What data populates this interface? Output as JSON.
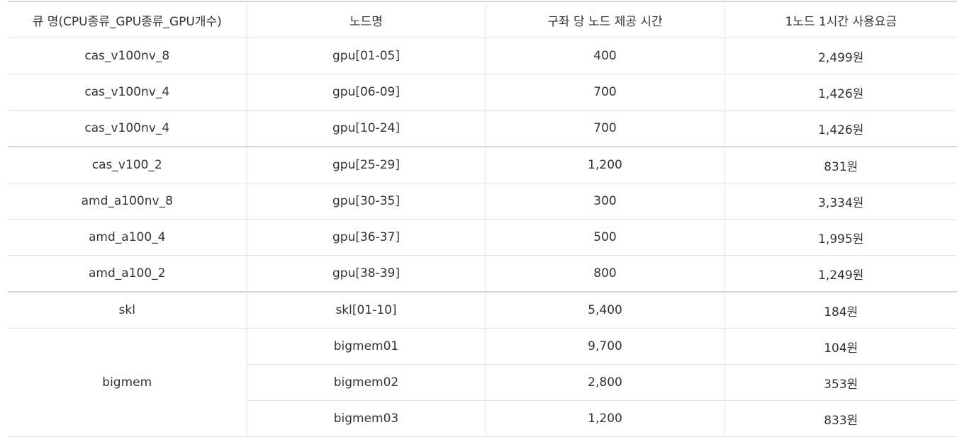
{
  "table": {
    "headers": [
      "큐 명(CPU종류_GPU종류_GPU개수)",
      "노드명",
      "구좌 당 노드 제공 시간",
      "1노드 1시간 사용요금"
    ],
    "rows": [
      {
        "queue": "cas_v100nv_8",
        "node": "gpu[01-05]",
        "hours": "400",
        "price": "2,499원"
      },
      {
        "queue": "cas_v100nv_4",
        "node": "gpu[06-09]",
        "hours": "700",
        "price": "1,426원"
      },
      {
        "queue": "cas_v100nv_4",
        "node": "gpu[10-24]",
        "hours": "700",
        "price": "1,426원"
      },
      {
        "queue": "cas_v100_2",
        "node": "gpu[25-29]",
        "hours": "1,200",
        "price": "831원"
      },
      {
        "queue": "amd_a100nv_8",
        "node": "gpu[30-35]",
        "hours": "300",
        "price": "3,334원"
      },
      {
        "queue": "amd_a100_4",
        "node": "gpu[36-37]",
        "hours": "500",
        "price": "1,995원"
      },
      {
        "queue": "amd_a100_2",
        "node": "gpu[38-39]",
        "hours": "800",
        "price": "1,249원"
      },
      {
        "queue": "skl",
        "node": "skl[01-10]",
        "hours": "5,400",
        "price": "184원"
      }
    ],
    "bigmem": {
      "queue": "bigmem",
      "rows": [
        {
          "node": "bigmem01",
          "hours": "9,700",
          "price": "104원"
        },
        {
          "node": "bigmem02",
          "hours": "2,800",
          "price": "353원"
        },
        {
          "node": "bigmem03",
          "hours": "1,200",
          "price": "833원"
        }
      ]
    }
  }
}
